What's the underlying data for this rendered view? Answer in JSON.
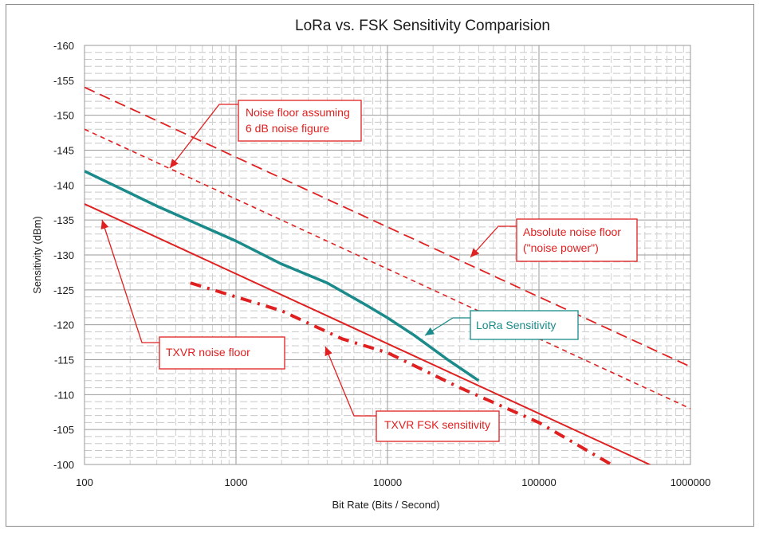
{
  "chart_data": {
    "type": "line",
    "title": "LoRa vs. FSK Sensitivity Comparision",
    "xlabel": "Bit Rate (Bits / Second)",
    "ylabel": "Sensitivity (dBm)",
    "x_scale": "log",
    "xlim": [
      100,
      1000000
    ],
    "ylim": [
      -100,
      -160
    ],
    "y_inverted": true,
    "x_tick_labels": [
      "100",
      "1000",
      "10000",
      "100000",
      "1000000"
    ],
    "y_tick_labels": [
      "-100",
      "-105",
      "-110",
      "-115",
      "-120",
      "-125",
      "-130",
      "-135",
      "-140",
      "-145",
      "-150",
      "-155",
      "-160"
    ],
    "grid": true,
    "series": [
      {
        "id": "noise_floor_6db",
        "x": [
          100,
          1000000
        ],
        "y": [
          -148,
          -108
        ],
        "color": "#e02020",
        "style": "short-dash"
      },
      {
        "id": "absolute_noise_floor",
        "x": [
          100,
          1000000
        ],
        "y": [
          -154,
          -114
        ],
        "color": "#e02020",
        "style": "long-dash"
      },
      {
        "id": "lora_sensitivity",
        "x": [
          100,
          300,
          1000,
          2000,
          4000,
          7000,
          10000,
          15000,
          25000,
          40000
        ],
        "y": [
          -142,
          -137,
          -132,
          -128.7,
          -126,
          -123,
          -121,
          -118.5,
          -115,
          -112
        ],
        "color": "#1a8a8a",
        "style": "solid"
      },
      {
        "id": "txvr_noise_floor",
        "x": [
          100,
          1000000
        ],
        "y": [
          -137.3,
          -97.3
        ],
        "color": "#e02020",
        "style": "solid"
      },
      {
        "id": "txvr_fsk_sensitivity",
        "x": [
          500,
          1000,
          2000,
          5000,
          10000,
          30000,
          100000,
          300000
        ],
        "y": [
          -126,
          -124,
          -122,
          -118,
          -116,
          -111,
          -106,
          -100
        ],
        "color": "#e02020",
        "style": "dash-dot"
      }
    ],
    "annotations": [
      {
        "id": "noise_floor_label",
        "text": [
          "Noise floor assuming",
          "6 dB noise figure"
        ],
        "color": "#e02020"
      },
      {
        "id": "absolute_label",
        "text": [
          "Absolute noise floor",
          "(\"noise power\")"
        ],
        "color": "#e02020"
      },
      {
        "id": "lora_label",
        "text": [
          "LoRa Sensitivity"
        ],
        "color": "#1a8a8a"
      },
      {
        "id": "txvr_label",
        "text": [
          "TXVR noise floor"
        ],
        "color": "#e02020"
      },
      {
        "id": "fsk_label",
        "text": [
          "TXVR FSK sensitivity"
        ],
        "color": "#e02020"
      }
    ]
  }
}
